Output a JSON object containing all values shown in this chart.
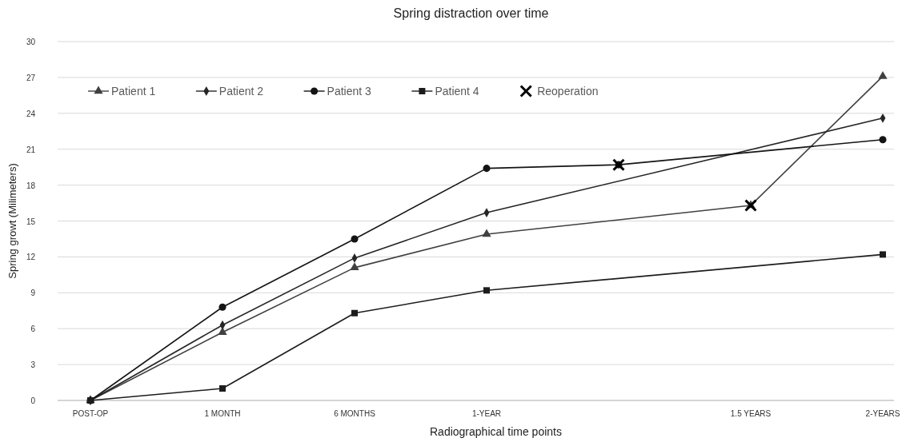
{
  "chart_data": {
    "type": "line",
    "title": "Spring distraction over time",
    "xlabel": "Radiographical time points",
    "ylabel": "Spring growt (Milimeters)",
    "categories": [
      "POST-OP",
      "1 MONTH",
      "6 MONTHS",
      "1-YEAR",
      null,
      "1.5 YEARS",
      "2-YEARS"
    ],
    "ylim": [
      0,
      30
    ],
    "yticks": [
      0,
      3,
      6,
      9,
      12,
      15,
      18,
      21,
      24,
      27,
      30
    ],
    "grid": "y",
    "legend": "top left",
    "series": [
      {
        "name": "Patient 1",
        "color": "#404040",
        "marker": "triangle",
        "values": [
          0,
          5.7,
          11.1,
          13.9,
          null,
          16.3,
          27.1
        ]
      },
      {
        "name": "Patient 2",
        "color": "#262626",
        "marker": "diamond",
        "values": [
          0,
          6.3,
          11.9,
          15.7,
          null,
          null,
          23.6
        ]
      },
      {
        "name": "Patient 3",
        "color": "#141414",
        "marker": "circle",
        "values": [
          0,
          7.8,
          13.5,
          19.4,
          19.7,
          null,
          21.8
        ]
      },
      {
        "name": "Patient 4",
        "color": "#1c1c1c",
        "marker": "square",
        "values": [
          0,
          1.0,
          7.3,
          9.2,
          null,
          null,
          12.2
        ]
      },
      {
        "name": "Reoperation",
        "type": "scatter",
        "color": "#000000",
        "marker": "cross",
        "values": [
          null,
          null,
          null,
          null,
          19.7,
          16.3,
          null
        ]
      }
    ]
  }
}
